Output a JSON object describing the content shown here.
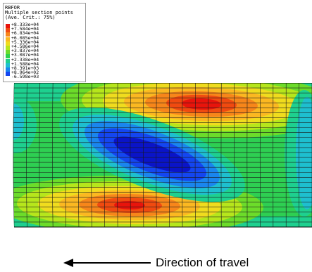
{
  "legend": {
    "variable": "RBFOR",
    "location": "Multiple section points",
    "averaging": "(Ave. Crit.: 75%)",
    "levels": [
      {
        "value": "+8.333e+04",
        "color": "#e8140c"
      },
      {
        "value": "+7.584e+04",
        "color": "#f04a10"
      },
      {
        "value": "+6.834e+04",
        "color": "#f7861a"
      },
      {
        "value": "+6.085e+04",
        "color": "#fbb821"
      },
      {
        "value": "+5.336e+04",
        "color": "#f0dc1e"
      },
      {
        "value": "+4.586e+04",
        "color": "#b6e61c"
      },
      {
        "value": "+3.837e+04",
        "color": "#6cdc2a"
      },
      {
        "value": "+3.087e+04",
        "color": "#2ed24a"
      },
      {
        "value": "+2.338e+04",
        "color": "#1ed08f"
      },
      {
        "value": "+1.588e+04",
        "color": "#1ebfcf"
      },
      {
        "value": "+8.391e+03",
        "color": "#1a86ee"
      },
      {
        "value": "+8.964e+02",
        "color": "#1446f0"
      },
      {
        "value": "-6.598e+03",
        "color": "#0a14c8"
      }
    ]
  },
  "annotation": {
    "direction_label": "Direction of travel"
  }
}
